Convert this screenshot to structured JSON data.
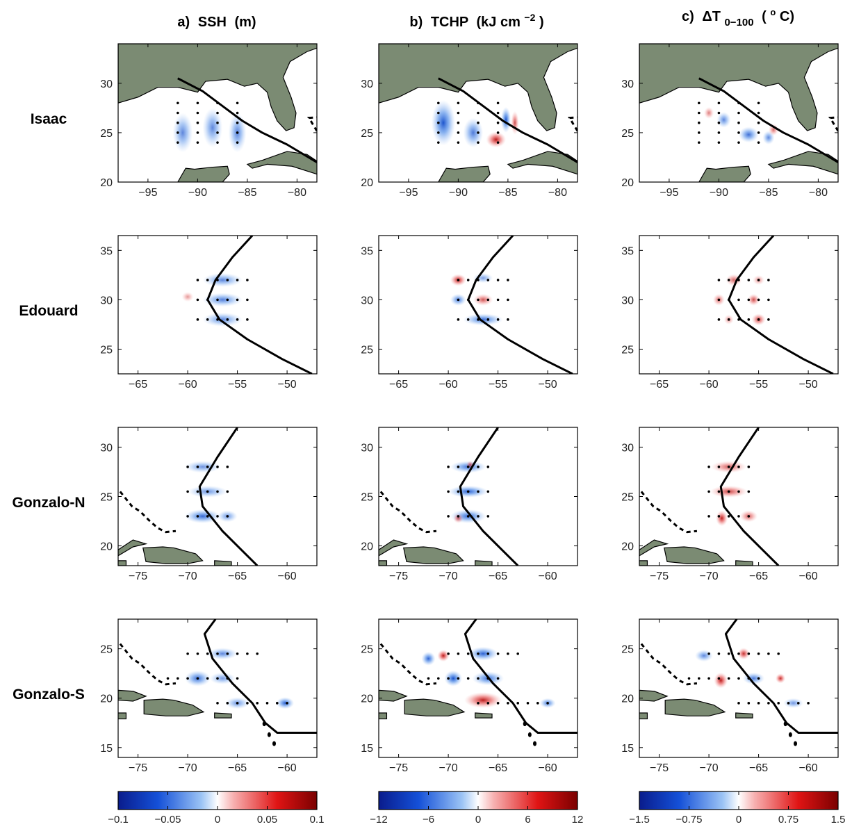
{
  "columns": [
    {
      "letter": "a)",
      "name": "SSH",
      "unit": "(m)"
    },
    {
      "letter": "b)",
      "name": "TCHP",
      "unit_main": "(kJ cm",
      "unit_sup": "−2",
      "unit_close": ")"
    },
    {
      "letter": "c)",
      "name": "ΔT",
      "sub": "0−100",
      "unit_open": "(",
      "unit_sup": "o",
      "unit_tail": "C)"
    }
  ],
  "rows": [
    "Isaac",
    "Edouard",
    "Gonzalo-N",
    "Gonzalo-S"
  ],
  "colorbars": [
    {
      "ticks": [
        "−0.1",
        "−0.05",
        "0",
        "0.05",
        "0.1"
      ],
      "range": [
        -0.1,
        0.1
      ]
    },
    {
      "ticks": [
        "−12",
        "−6",
        "0",
        "6",
        "12"
      ],
      "range": [
        -12,
        12
      ]
    },
    {
      "ticks": [
        "−1.5",
        "−0.75",
        "0",
        "0.75",
        "1.5"
      ],
      "range": [
        -1.5,
        1.5
      ]
    }
  ],
  "colors": {
    "land": "#7b8b73",
    "negative": "#1c5fd6",
    "positive": "#d41818",
    "track": "#000000"
  },
  "chart_data": [
    {
      "type": "heatmap",
      "row": "Isaac",
      "xlim": [
        -98,
        -78
      ],
      "ylim": [
        20,
        34
      ],
      "xticks": [
        -95,
        -90,
        -85,
        -80
      ],
      "yticks": [
        20,
        25,
        30
      ],
      "track": [
        [
          -92,
          30.5
        ],
        [
          -89.5,
          29.2
        ],
        [
          -87.5,
          27.7
        ],
        [
          -85.5,
          26.2
        ],
        [
          -83.5,
          25
        ],
        [
          -81,
          23.8
        ],
        [
          -78,
          22
        ]
      ],
      "floats": {
        "lons": [
          -92,
          -90,
          -88,
          -86
        ],
        "lats": [
          24,
          25,
          26,
          27,
          28
        ]
      },
      "anomalies": {
        "ssh": [
          [
            -91.5,
            25,
            -0.5,
            1.0,
            2.0
          ],
          [
            -88.5,
            25.5,
            -0.5,
            1.0,
            2.0
          ],
          [
            -86,
            25,
            -0.55,
            0.9,
            2.0
          ]
        ],
        "tchp": [
          [
            -91.5,
            26,
            -0.9,
            1.2,
            2.3
          ],
          [
            -86.2,
            24.3,
            0.95,
            1.0,
            0.8
          ],
          [
            -85.2,
            26.3,
            -0.9,
            0.5,
            1.3
          ],
          [
            -84.3,
            26,
            0.6,
            0.4,
            1.2
          ],
          [
            -88.5,
            25,
            -0.6,
            1.0,
            1.5
          ]
        ],
        "dt": [
          [
            -87,
            24.8,
            -0.7,
            1.0,
            0.8
          ],
          [
            -89.5,
            26.3,
            -0.5,
            0.7,
            0.8
          ],
          [
            -85,
            24.5,
            -0.5,
            0.6,
            0.7
          ],
          [
            -84.5,
            25.3,
            0.4,
            0.5,
            0.6
          ],
          [
            -91,
            27,
            0.3,
            0.5,
            0.6
          ]
        ]
      }
    },
    {
      "type": "heatmap",
      "row": "Edouard",
      "xlim": [
        -67,
        -47
      ],
      "ylim": [
        22.5,
        36.5
      ],
      "xticks": [
        -65,
        -60,
        -55,
        -50
      ],
      "yticks": [
        25,
        30,
        35
      ],
      "track": [
        [
          -53.5,
          36.5
        ],
        [
          -55.5,
          34.3
        ],
        [
          -57.2,
          32
        ],
        [
          -58,
          30
        ],
        [
          -56.8,
          28
        ],
        [
          -54,
          26
        ],
        [
          -50.5,
          24
        ],
        [
          -47.5,
          22.5
        ]
      ],
      "floats": {
        "lons": [
          -59,
          -58,
          -57,
          -56,
          -55,
          -54
        ],
        "lats": [
          28,
          30,
          32
        ]
      },
      "anomalies": {
        "ssh": [
          [
            -56.5,
            32,
            -0.5,
            2.0,
            0.7
          ],
          [
            -56.5,
            30,
            -0.55,
            2.0,
            0.7
          ],
          [
            -56.5,
            28,
            -0.5,
            2.0,
            0.7
          ],
          [
            -60,
            30.3,
            0.15,
            0.6,
            0.5
          ]
        ],
        "tchp": [
          [
            -59,
            32,
            0.9,
            0.8,
            0.6
          ],
          [
            -56.5,
            32.2,
            -0.3,
            1.0,
            0.5
          ],
          [
            -56.5,
            30,
            0.55,
            1.0,
            0.6
          ],
          [
            -59,
            30,
            -0.6,
            0.8,
            0.6
          ],
          [
            -56.5,
            28,
            -0.7,
            2.0,
            0.6
          ]
        ],
        "dt": [
          [
            -57.5,
            32,
            0.45,
            0.8,
            0.6
          ],
          [
            -59,
            30,
            0.45,
            0.6,
            0.6
          ],
          [
            -55.5,
            30,
            0.6,
            0.6,
            0.6
          ],
          [
            -55,
            28,
            0.7,
            0.7,
            0.6
          ],
          [
            -58,
            28,
            0.2,
            0.5,
            0.5
          ],
          [
            -55,
            32,
            0.2,
            0.6,
            0.5
          ]
        ]
      }
    },
    {
      "type": "heatmap",
      "row": "Gonzalo-N",
      "xlim": [
        -77,
        -57
      ],
      "ylim": [
        18,
        32
      ],
      "xticks": [
        -75,
        -70,
        -65,
        -60
      ],
      "yticks": [
        20,
        25,
        30
      ],
      "track": [
        [
          -65,
          32
        ],
        [
          -67,
          29
        ],
        [
          -68.8,
          26
        ],
        [
          -68.5,
          24
        ],
        [
          -66.5,
          21.5
        ],
        [
          -64.5,
          19.5
        ],
        [
          -63,
          18
        ]
      ],
      "floats": {
        "lons": [
          -70,
          -69,
          -68,
          -67,
          -66
        ],
        "lats": [
          23,
          25.5,
          28
        ]
      },
      "anomalies": {
        "ssh": [
          [
            -68.5,
            28,
            -0.4,
            1.8,
            0.6
          ],
          [
            -68,
            25.5,
            -0.4,
            2.0,
            0.6
          ],
          [
            -68.5,
            23,
            -0.75,
            1.8,
            0.7
          ],
          [
            -66,
            23,
            -0.4,
            1.0,
            0.6
          ]
        ],
        "tchp": [
          [
            -68,
            28,
            -0.7,
            1.8,
            0.6
          ],
          [
            -67.8,
            28.2,
            0.5,
            0.4,
            0.4
          ],
          [
            -68,
            25.5,
            -0.8,
            2.0,
            0.6
          ],
          [
            -68,
            23,
            -0.75,
            1.8,
            0.7
          ],
          [
            -69,
            22.8,
            0.5,
            0.5,
            0.5
          ]
        ],
        "dt": [
          [
            -68,
            28,
            0.5,
            1.8,
            0.6
          ],
          [
            -68,
            25.5,
            0.65,
            1.9,
            0.6
          ],
          [
            -68.7,
            22.8,
            0.9,
            0.6,
            0.8
          ],
          [
            -66,
            23,
            0.5,
            0.9,
            0.6
          ]
        ]
      }
    },
    {
      "type": "heatmap",
      "row": "Gonzalo-S",
      "xlim": [
        -77,
        -57
      ],
      "ylim": [
        14,
        28
      ],
      "xticks": [
        -75,
        -70,
        -65,
        -60
      ],
      "yticks": [
        15,
        20,
        25
      ],
      "track": [
        [
          -67.2,
          28
        ],
        [
          -68.3,
          26.5
        ],
        [
          -67.5,
          24
        ],
        [
          -65.5,
          21.5
        ],
        [
          -63.5,
          19.5
        ],
        [
          -62.2,
          17.5
        ],
        [
          -61,
          16.5
        ],
        [
          -57,
          16.5
        ]
      ],
      "floats": {
        "lons": {
          "25": [
            -72,
            -71,
            -70,
            -69,
            -68,
            -67,
            -66,
            -65
          ],
          "22": [
            -70,
            -69,
            -68,
            -67,
            -66,
            -65,
            -64,
            -63
          ],
          "19.5": [
            -67,
            -66,
            -65,
            -64,
            -63,
            -62,
            -61,
            -60
          ]
        },
        "lats": [
          24.5,
          22,
          19.5
        ]
      },
      "anomalies": {
        "ssh": [
          [
            -69,
            22,
            -0.7,
            1.3,
            0.8
          ],
          [
            -66.5,
            24.5,
            -0.5,
            1.5,
            0.6
          ],
          [
            -60.2,
            19.5,
            -0.8,
            0.9,
            0.6
          ],
          [
            -65,
            19.5,
            -0.4,
            1.2,
            0.6
          ],
          [
            -66.5,
            22,
            -0.35,
            1.3,
            0.6
          ]
        ],
        "tchp": [
          [
            -70.5,
            24.3,
            0.95,
            0.6,
            0.6
          ],
          [
            -72,
            24,
            -0.8,
            0.7,
            0.7
          ],
          [
            -69.5,
            22,
            -1.0,
            0.9,
            0.8
          ],
          [
            -66,
            22,
            -0.7,
            1.6,
            0.7
          ],
          [
            -66.5,
            24.5,
            -0.8,
            1.5,
            0.7
          ],
          [
            -66.5,
            19.8,
            0.9,
            1.9,
            0.8
          ],
          [
            -60,
            19.5,
            -0.6,
            0.8,
            0.5
          ]
        ],
        "dt": [
          [
            -68.8,
            21.8,
            1.0,
            0.7,
            0.8
          ],
          [
            -66.5,
            24.5,
            0.8,
            0.6,
            0.6
          ],
          [
            -62.8,
            22,
            0.8,
            0.5,
            0.5
          ],
          [
            -65.5,
            22,
            -0.6,
            1.1,
            0.6
          ],
          [
            -70.5,
            24.3,
            -0.5,
            0.9,
            0.6
          ],
          [
            -61.5,
            19.5,
            -0.4,
            1.0,
            0.5
          ]
        ]
      }
    }
  ]
}
